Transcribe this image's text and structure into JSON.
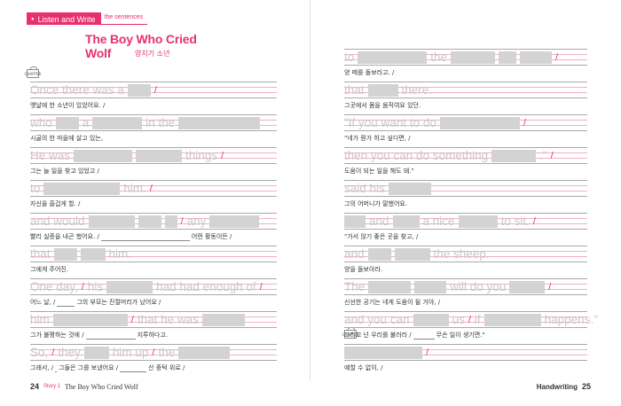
{
  "header": {
    "tab_label": "Listen and Write",
    "tab_sub": "the sentences",
    "title": "The Boy Who Cried Wolf",
    "subtitle": "양치기 소년"
  },
  "badge_text": "CHAPTER",
  "left_rows": [
    {
      "parts": [
        {
          "t": "text",
          "v": "Once there was a"
        },
        {
          "t": "blank",
          "w": 26
        },
        {
          "t": "slash"
        }
      ],
      "korean": [
        {
          "t": "text",
          "v": "옛날에 한 소년이 있었어요. /"
        }
      ]
    },
    {
      "parts": [
        {
          "t": "text",
          "v": "who"
        },
        {
          "t": "blank",
          "w": 26
        },
        {
          "t": "text",
          "v": "a"
        },
        {
          "t": "blank",
          "w": 56
        },
        {
          "t": "text",
          "v": "in the"
        },
        {
          "t": "blank",
          "w": 92
        }
      ],
      "korean": [
        {
          "t": "text",
          "v": "시골의 한 마을에 살고 있는,"
        }
      ]
    },
    {
      "parts": [
        {
          "t": "text",
          "v": "He was"
        },
        {
          "t": "blank",
          "w": 66
        },
        {
          "t": "blank",
          "w": 52
        },
        {
          "t": "text",
          "v": "things"
        },
        {
          "t": "slash"
        }
      ],
      "korean": [
        {
          "t": "text",
          "v": "그는 늘 일을 찾고 있었고 /"
        }
      ]
    },
    {
      "parts": [
        {
          "t": "text",
          "v": "to"
        },
        {
          "t": "blank",
          "w": 86
        },
        {
          "t": "text",
          "v": "him."
        },
        {
          "t": "slash"
        }
      ],
      "korean": [
        {
          "t": "text",
          "v": "자신을 즐겁게 할. /"
        }
      ]
    },
    {
      "parts": [
        {
          "t": "text",
          "v": "and would"
        },
        {
          "t": "blank",
          "w": 52
        },
        {
          "t": "blank",
          "w": 26
        },
        {
          "t": "blank",
          "w": 14
        },
        {
          "t": "slash"
        },
        {
          "t": "text",
          "v": "any"
        },
        {
          "t": "blank",
          "w": 56
        }
      ],
      "korean": [
        {
          "t": "text",
          "v": "빨리 실증을 내곤 했어요. /"
        },
        {
          "t": "gap",
          "w": 100
        },
        {
          "t": "text",
          "v": "어떤 활동이든 /"
        }
      ]
    },
    {
      "parts": [
        {
          "t": "text",
          "v": "that"
        },
        {
          "t": "blank",
          "w": 26
        },
        {
          "t": "blank",
          "w": 28
        },
        {
          "t": "text",
          "v": "him."
        }
      ],
      "korean": [
        {
          "t": "text",
          "v": "그에게 주어진."
        }
      ]
    },
    {
      "parts": [
        {
          "t": "text",
          "v": "One day,"
        },
        {
          "t": "slash"
        },
        {
          "t": "text",
          "v": "his"
        },
        {
          "t": "blank",
          "w": 52
        },
        {
          "t": "text",
          "v": "had had enough of"
        },
        {
          "t": "slash"
        }
      ],
      "korean": [
        {
          "t": "text",
          "v": "어느 날, /"
        },
        {
          "t": "gap",
          "w": 20
        },
        {
          "t": "text",
          "v": "그의 부모는 진절머리가 났어요 /"
        }
      ]
    },
    {
      "parts": [
        {
          "t": "text",
          "v": "him"
        },
        {
          "t": "blank",
          "w": 84
        },
        {
          "t": "slash"
        },
        {
          "t": "text",
          "v": "that he was"
        },
        {
          "t": "blank",
          "w": 48
        }
      ],
      "korean": [
        {
          "t": "text",
          "v": "그가 불평하는 것에 /"
        },
        {
          "t": "gap",
          "w": 56
        },
        {
          "t": "text",
          "v": "지루하다고."
        }
      ]
    },
    {
      "parts": [
        {
          "t": "text",
          "v": "So,"
        },
        {
          "t": "slash"
        },
        {
          "t": "text",
          "v": "they"
        },
        {
          "t": "blank",
          "w": 28
        },
        {
          "t": "text",
          "v": "him up"
        },
        {
          "t": "slash"
        },
        {
          "t": "text",
          "v": "the"
        },
        {
          "t": "blank",
          "w": 58
        }
      ],
      "korean": [
        {
          "t": "text",
          "v": "그래서, /"
        },
        {
          "t": "gap",
          "w": 2
        },
        {
          "t": "text",
          "v": "그들은 그를 보냈어요 /"
        },
        {
          "t": "gap",
          "w": 30
        },
        {
          "t": "text",
          "v": "산 중턱 위로 /"
        }
      ]
    }
  ],
  "right_rows": [
    {
      "parts": [
        {
          "t": "text",
          "v": "to"
        },
        {
          "t": "blank",
          "w": 78
        },
        {
          "t": "text",
          "v": "the"
        },
        {
          "t": "blank",
          "w": 50
        },
        {
          "t": "blank",
          "w": 20
        },
        {
          "t": "blank",
          "w": 36
        },
        {
          "t": "slash"
        }
      ],
      "korean": [
        {
          "t": "text",
          "v": "양 떼를 돌보라고. /"
        }
      ]
    },
    {
      "parts": [
        {
          "t": "text",
          "v": "that"
        },
        {
          "t": "blank",
          "w": 34
        },
        {
          "t": "text",
          "v": "there."
        }
      ],
      "korean": [
        {
          "t": "text",
          "v": "그곳에서 몸을 움직여요 있던."
        }
      ]
    },
    {
      "parts": [
        {
          "t": "text",
          "v": "\"If you want to do"
        },
        {
          "t": "blank",
          "w": 90
        },
        {
          "t": "slash"
        }
      ],
      "korean": [
        {
          "t": "text",
          "v": "\"네가 뭔가 하고 싶다면, /"
        }
      ]
    },
    {
      "parts": [
        {
          "t": "text",
          "v": "then you can do something"
        },
        {
          "t": "blank",
          "w": 50
        },
        {
          "t": "text",
          "v": ".\""
        },
        {
          "t": "slash"
        }
      ],
      "korean": [
        {
          "t": "text",
          "v": "도움이 되는 일을 해도 돼.\""
        }
      ]
    },
    {
      "parts": [
        {
          "t": "text",
          "v": "said his"
        },
        {
          "t": "blank",
          "w": 48
        }
      ],
      "korean": [
        {
          "t": "text",
          "v": "그의 어머니가 말했어요."
        }
      ]
    },
    {
      "parts": [
        {
          "t": "blank",
          "w": 24
        },
        {
          "t": "text",
          "v": "and"
        },
        {
          "t": "blank",
          "w": 30
        },
        {
          "t": "text",
          "v": "a nice"
        },
        {
          "t": "blank",
          "w": 44
        },
        {
          "t": "text",
          "v": "to sit."
        },
        {
          "t": "slash"
        }
      ],
      "korean": [
        {
          "t": "text",
          "v": "\"가서 앉기 좋은 곳을 찾고, /"
        }
      ]
    },
    {
      "parts": [
        {
          "t": "text",
          "v": "and"
        },
        {
          "t": "blank",
          "w": 26
        },
        {
          "t": "blank",
          "w": 40
        },
        {
          "t": "text",
          "v": "the sheep."
        }
      ],
      "korean": [
        {
          "t": "text",
          "v": "양을 돌보아라."
        }
      ]
    },
    {
      "parts": [
        {
          "t": "text",
          "v": "The"
        },
        {
          "t": "blank",
          "w": 48
        },
        {
          "t": "blank",
          "w": 36
        },
        {
          "t": "text",
          "v": "will do you"
        },
        {
          "t": "blank",
          "w": 40
        },
        {
          "t": "slash"
        }
      ],
      "korean": [
        {
          "t": "text",
          "v": "신선한 공기는 네게 도움이 될 거야, /"
        }
      ]
    },
    {
      "parts": [
        {
          "t": "text",
          "v": "and you can"
        },
        {
          "t": "blank",
          "w": 40
        },
        {
          "t": "text",
          "v": "us"
        },
        {
          "t": "slash"
        },
        {
          "t": "text",
          "v": "if"
        },
        {
          "t": "blank",
          "w": 64
        },
        {
          "t": "text",
          "v": "happens.\""
        }
      ],
      "korean": [
        {
          "t": "text",
          "v": "그리고 넌 우리를 불러라 /"
        },
        {
          "t": "gap",
          "w": 24
        },
        {
          "t": "text",
          "v": "무슨 일이 생기면.\""
        }
      ]
    },
    {
      "parts": [
        {
          "t": "blank",
          "w": 88
        },
        {
          "t": "slash"
        }
      ],
      "korean": [
        {
          "t": "text",
          "v": "예할 수 없이, /"
        }
      ]
    }
  ],
  "footer": {
    "left_page": "24",
    "story_label": "Story 1",
    "left_title": "The Boy Who Cried Wolf",
    "right_section": "Handwriting",
    "right_page": "25"
  }
}
